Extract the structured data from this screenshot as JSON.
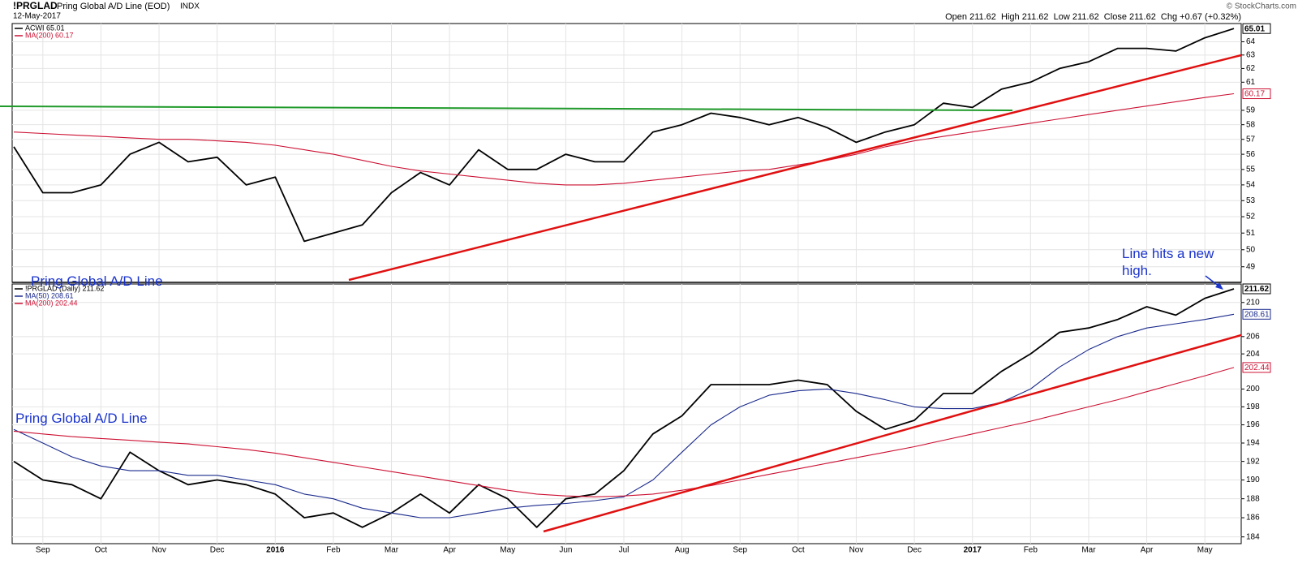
{
  "chart_data": [
    {
      "type": "line",
      "symbol": "!PRGLAD",
      "title": "Pring Global A/D Line (EOD)",
      "exchange": "INDX",
      "date": "12-May-2017",
      "quote": "Open 211.62  High 211.62  Low 211.62  Close 211.62  Chg +0.67 (+0.32%)",
      "watermark": "© StockCharts.com",
      "annotation": "Pring Global A/D Line",
      "log_scale": true,
      "grid": true,
      "ylim": [
        48.1,
        65.4
      ],
      "yticks": [
        49,
        50,
        51,
        52,
        53,
        54,
        55,
        56,
        57,
        58,
        59,
        61,
        62,
        63,
        64
      ],
      "series": [
        {
          "name": "ACWI 65.01",
          "color": "#000000",
          "values": [
            56.5,
            53.5,
            53.5,
            54,
            56,
            56.8,
            55.5,
            55.8,
            54,
            54.5,
            50.5,
            51,
            51.5,
            53.5,
            54.8,
            54,
            56.3,
            55,
            55,
            56,
            55.5,
            55.5,
            57.5,
            58,
            58.8,
            58.5,
            58,
            58.5,
            57.8,
            56.8,
            57.5,
            58,
            59.5,
            59.2,
            60.5,
            61,
            62,
            62.5,
            63.5,
            63.5,
            63.3,
            64.3,
            65.01
          ]
        },
        {
          "name": "MA(200) 60.17",
          "color": "#cc1133",
          "values": [
            57.5,
            57.4,
            57.3,
            57.2,
            57.1,
            57.0,
            57.0,
            56.9,
            56.8,
            56.6,
            56.3,
            56.0,
            55.6,
            55.2,
            54.9,
            54.7,
            54.5,
            54.3,
            54.1,
            54.0,
            54.0,
            54.1,
            54.3,
            54.5,
            54.7,
            54.9,
            55.0,
            55.3,
            55.6,
            56.0,
            56.5,
            56.9,
            57.2,
            57.5,
            57.8,
            58.1,
            58.4,
            58.7,
            59.0,
            59.3,
            59.6,
            59.9,
            60.17
          ]
        }
      ]
    },
    {
      "type": "line",
      "annotation": "Pring Global A/D Line",
      "callout": "Line hits a new high.",
      "log_scale": true,
      "grid": true,
      "categories": [
        null,
        "Sep",
        null,
        "Oct",
        null,
        "Nov",
        null,
        "Dec",
        null,
        "2016",
        null,
        "Feb",
        null,
        "Mar",
        null,
        "Apr",
        null,
        "May",
        null,
        "Jun",
        null,
        "Jul",
        null,
        "Aug",
        null,
        "Sep",
        null,
        "Oct",
        null,
        "Nov",
        null,
        "Dec",
        null,
        "2017",
        null,
        "Feb",
        null,
        "Mar",
        null,
        "Apr",
        null,
        "May",
        null
      ],
      "ylim": [
        183.3,
        212.2
      ],
      "yticks": [
        184,
        186,
        188,
        190,
        192,
        194,
        196,
        198,
        200,
        204,
        206,
        210
      ],
      "series": [
        {
          "name": "!PRGLAD (Daily) 211.62",
          "color": "#000000",
          "values": [
            192,
            190,
            189.5,
            188,
            193,
            191,
            189.5,
            190,
            189.5,
            188.5,
            186,
            186.5,
            185,
            186.5,
            188.5,
            186.5,
            189.5,
            188,
            185,
            188,
            188.5,
            191,
            195,
            197,
            200.5,
            200.5,
            200.5,
            201,
            200.5,
            197.5,
            195.5,
            196.5,
            199.5,
            199.5,
            202,
            204,
            206.5,
            207,
            208,
            209.5,
            208.5,
            210.5,
            211.62
          ]
        },
        {
          "name": "MA(50) 208.61",
          "color": "#1a2a8c",
          "values": [
            195.5,
            194,
            192.5,
            191.5,
            191,
            191,
            190.5,
            190.5,
            190,
            189.5,
            188.5,
            188,
            187,
            186.5,
            186,
            186,
            186.5,
            187,
            187.3,
            187.5,
            187.8,
            188.2,
            190,
            193,
            196,
            198,
            199.3,
            199.8,
            200,
            199.5,
            198.8,
            198,
            197.8,
            197.8,
            198.5,
            200,
            202.5,
            204.5,
            206,
            207,
            207.5,
            208,
            208.61
          ]
        },
        {
          "name": "MA(200) 202.44",
          "color": "#cc1133",
          "values": [
            195.3,
            195,
            194.7,
            194.5,
            194.3,
            194.1,
            193.9,
            193.6,
            193.3,
            192.9,
            192.4,
            191.9,
            191.4,
            190.9,
            190.4,
            189.9,
            189.4,
            188.9,
            188.5,
            188.3,
            188.2,
            188.3,
            188.5,
            188.9,
            189.4,
            190.0,
            190.6,
            191.2,
            191.8,
            192.4,
            193.0,
            193.6,
            194.3,
            195.0,
            195.7,
            196.4,
            197.2,
            198.0,
            198.8,
            199.7,
            200.6,
            201.5,
            202.44
          ]
        }
      ]
    }
  ]
}
